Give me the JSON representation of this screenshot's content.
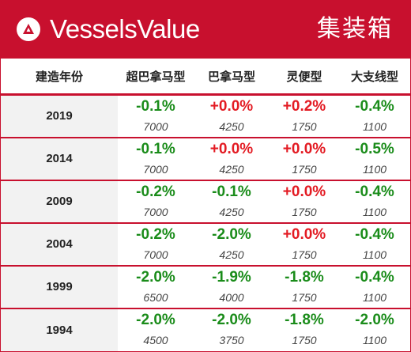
{
  "header": {
    "brand": "VesselsValue",
    "category": "集装箱"
  },
  "columns": [
    "建造年份",
    "超巴拿马型",
    "巴拿马型",
    "灵便型",
    "大支线型"
  ],
  "rows": [
    {
      "year": "2019",
      "cells": [
        {
          "pct": "-0.1%",
          "base": "7000"
        },
        {
          "pct": "+0.0%",
          "base": "4250"
        },
        {
          "pct": "+0.2%",
          "base": "1750"
        },
        {
          "pct": "-0.4%",
          "base": "1100"
        }
      ]
    },
    {
      "year": "2014",
      "cells": [
        {
          "pct": "-0.1%",
          "base": "7000"
        },
        {
          "pct": "+0.0%",
          "base": "4250"
        },
        {
          "pct": "+0.0%",
          "base": "1750"
        },
        {
          "pct": "-0.5%",
          "base": "1100"
        }
      ]
    },
    {
      "year": "2009",
      "cells": [
        {
          "pct": "-0.2%",
          "base": "7000"
        },
        {
          "pct": "-0.1%",
          "base": "4250"
        },
        {
          "pct": "+0.0%",
          "base": "1750"
        },
        {
          "pct": "-0.4%",
          "base": "1100"
        }
      ]
    },
    {
      "year": "2004",
      "cells": [
        {
          "pct": "-0.2%",
          "base": "7000"
        },
        {
          "pct": "-2.0%",
          "base": "4250"
        },
        {
          "pct": "+0.0%",
          "base": "1750"
        },
        {
          "pct": "-0.4%",
          "base": "1100"
        }
      ]
    },
    {
      "year": "1999",
      "cells": [
        {
          "pct": "-2.0%",
          "base": "6500"
        },
        {
          "pct": "-1.9%",
          "base": "4000"
        },
        {
          "pct": "-1.8%",
          "base": "1750"
        },
        {
          "pct": "-0.4%",
          "base": "1100"
        }
      ]
    },
    {
      "year": "1994",
      "cells": [
        {
          "pct": "-2.0%",
          "base": "4500"
        },
        {
          "pct": "-2.0%",
          "base": "3750"
        },
        {
          "pct": "-1.8%",
          "base": "1750"
        },
        {
          "pct": "-2.0%",
          "base": "1100"
        }
      ]
    }
  ],
  "colors": {
    "brand_red": "#c8102e",
    "positive": "#e31b23",
    "negative": "#1a8c1a"
  },
  "icons": {
    "logo": "vesselsvalue-logo-icon"
  }
}
